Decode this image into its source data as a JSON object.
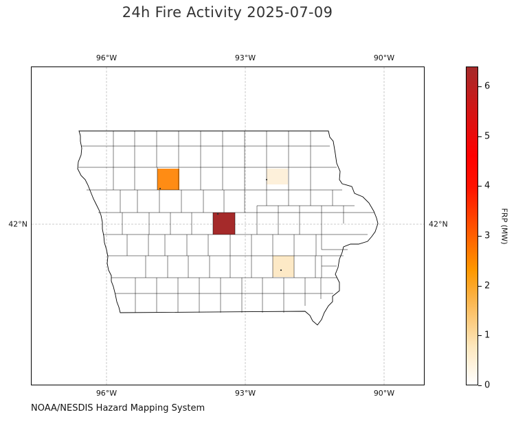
{
  "title": "24h Fire Activity 2025-07-09",
  "map": {
    "region": "Iowa",
    "top_ticks": [
      "96°W",
      "93°W",
      "90°W"
    ],
    "bottom_ticks": [
      "96°W",
      "93°W",
      "90°W"
    ],
    "left_tick": "42°N",
    "right_tick": "42°N",
    "gridlines": true,
    "shaded_counties": [
      {
        "frp_mw": 2.3,
        "color": "#ff8c14"
      },
      {
        "frp_mw": 0.2,
        "color": "#fdf0da"
      },
      {
        "frp_mw": 6.3,
        "color": "#a52a2a"
      },
      {
        "frp_mw": 0.5,
        "color": "#fde9c6"
      }
    ]
  },
  "colorbar": {
    "label": "FRP (MW)",
    "ticks": [
      "0",
      "1",
      "2",
      "3",
      "4",
      "5",
      "6"
    ],
    "min": 0,
    "max": 6.4,
    "colors": [
      "#ffffff",
      "#fbb041",
      "#ff0000",
      "#a52a2a"
    ]
  },
  "source": "NOAA/NESDIS Hazard Mapping System"
}
